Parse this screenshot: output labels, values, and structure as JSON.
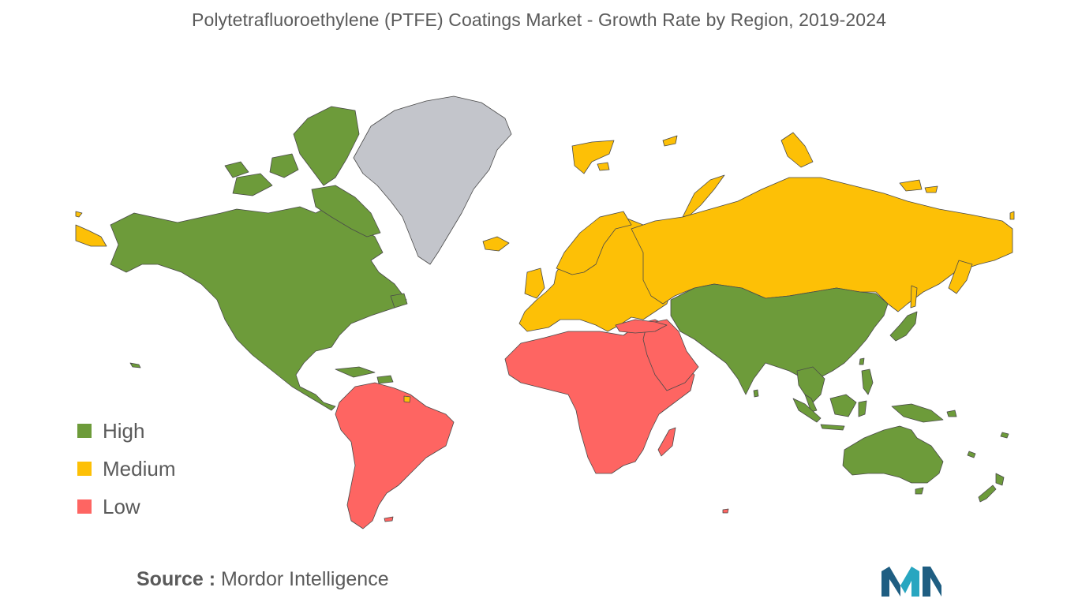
{
  "title": "Polytetrafluoroethylene (PTFE) Coatings Market - Growth Rate by Region, 2019-2024",
  "legend": [
    {
      "label": "High",
      "color": "#6d9b3a"
    },
    {
      "label": "Medium",
      "color": "#fdc006"
    },
    {
      "label": "Low",
      "color": "#fe6562"
    }
  ],
  "no_data_color": "#c3c5cb",
  "regions": [
    {
      "name": "North America",
      "level": "High"
    },
    {
      "name": "Asia-Pacific",
      "level": "High"
    },
    {
      "name": "Europe",
      "level": "Medium"
    },
    {
      "name": "South America",
      "level": "Low"
    },
    {
      "name": "Middle East & Africa",
      "level": "Low"
    }
  ],
  "source": {
    "label": "Source :",
    "text": "Mordor Intelligence"
  },
  "logo_colors": [
    "#1f5e82",
    "#28a6c0"
  ]
}
